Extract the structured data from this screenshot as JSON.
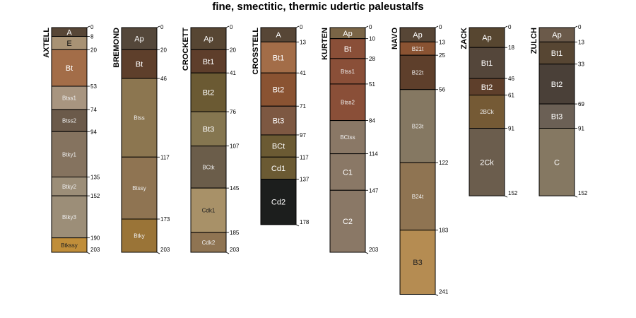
{
  "title": "fine, smectitic, thermic udertic paleustalfs",
  "max_depth": 241,
  "profiles": [
    {
      "name": "AXTELL",
      "horizons": [
        {
          "name": "A",
          "top": 0,
          "bottom": 8,
          "color": "#574636",
          "text": "#ffffff"
        },
        {
          "name": "E",
          "top": 8,
          "bottom": 20,
          "color": "#a89274",
          "text": "#111111"
        },
        {
          "name": "Bt",
          "top": 20,
          "bottom": 53,
          "color": "#a36d48",
          "text": "#ffffff"
        },
        {
          "name": "Btss1",
          "top": 53,
          "bottom": 74,
          "color": "#a89580",
          "text": "#eeeeee"
        },
        {
          "name": "Btss2",
          "top": 74,
          "bottom": 94,
          "color": "#6b5a4a",
          "text": "#eeeeee"
        },
        {
          "name": "Btky1",
          "top": 94,
          "bottom": 135,
          "color": "#85735f",
          "text": "#eeeeee"
        },
        {
          "name": "Btky2",
          "top": 135,
          "bottom": 152,
          "color": "#9c8e78",
          "text": "#eeeeee"
        },
        {
          "name": "Btky3",
          "top": 152,
          "bottom": 190,
          "color": "#9c8e78",
          "text": "#eeeeee"
        },
        {
          "name": "Btkssy",
          "top": 190,
          "bottom": 203,
          "color": "#c08e3a",
          "text": "#222222"
        }
      ]
    },
    {
      "name": "BREMOND",
      "horizons": [
        {
          "name": "Ap",
          "top": 0,
          "bottom": 20,
          "color": "#54473a",
          "text": "#ffffff"
        },
        {
          "name": "Bt",
          "top": 20,
          "bottom": 46,
          "color": "#5e3f2b",
          "text": "#ffffff"
        },
        {
          "name": "Btss",
          "top": 46,
          "bottom": 117,
          "color": "#8c7650",
          "text": "#eeeeee"
        },
        {
          "name": "Btssy",
          "top": 117,
          "bottom": 173,
          "color": "#8f7452",
          "text": "#eeeeee"
        },
        {
          "name": "Btky",
          "top": 173,
          "bottom": 203,
          "color": "#9a7437",
          "text": "#eeeeee"
        }
      ]
    },
    {
      "name": "CROCKETT",
      "horizons": [
        {
          "name": "Ap",
          "top": 0,
          "bottom": 20,
          "color": "#574633",
          "text": "#ffffff"
        },
        {
          "name": "Bt1",
          "top": 20,
          "bottom": 41,
          "color": "#5e3e2b",
          "text": "#ffffff"
        },
        {
          "name": "Bt2",
          "top": 41,
          "bottom": 76,
          "color": "#6b5a33",
          "text": "#ffffff"
        },
        {
          "name": "Bt3",
          "top": 76,
          "bottom": 107,
          "color": "#857650",
          "text": "#ffffff"
        },
        {
          "name": "BCtk",
          "top": 107,
          "bottom": 145,
          "color": "#6b5d4a",
          "text": "#eeeeee"
        },
        {
          "name": "Cdk1",
          "top": 145,
          "bottom": 185,
          "color": "#a89168",
          "text": "#222222"
        },
        {
          "name": "Cdk2",
          "top": 185,
          "bottom": 203,
          "color": "#8f7452",
          "text": "#eeeeee"
        }
      ]
    },
    {
      "name": "CROSSTELL",
      "horizons": [
        {
          "name": "A",
          "top": 0,
          "bottom": 13,
          "color": "#574636",
          "text": "#ffffff"
        },
        {
          "name": "Bt1",
          "top": 13,
          "bottom": 41,
          "color": "#a36d48",
          "text": "#ffffff"
        },
        {
          "name": "Bt2",
          "top": 41,
          "bottom": 71,
          "color": "#8a5332",
          "text": "#ffffff"
        },
        {
          "name": "Bt3",
          "top": 71,
          "bottom": 97,
          "color": "#7d5842",
          "text": "#ffffff"
        },
        {
          "name": "BCt",
          "top": 97,
          "bottom": 117,
          "color": "#6b5a33",
          "text": "#ffffff"
        },
        {
          "name": "Cd1",
          "top": 117,
          "bottom": 137,
          "color": "#6b5a33",
          "text": "#ffffff"
        },
        {
          "name": "Cd2",
          "top": 137,
          "bottom": 178,
          "color": "#1c1e1d",
          "text": "#ffffff"
        }
      ]
    },
    {
      "name": "KURTEN",
      "horizons": [
        {
          "name": "Ap",
          "top": 0,
          "bottom": 10,
          "color": "#7a6546",
          "text": "#ffffff"
        },
        {
          "name": "Bt",
          "top": 10,
          "bottom": 28,
          "color": "#8a4f38",
          "text": "#ffffff"
        },
        {
          "name": "Btss1",
          "top": 28,
          "bottom": 51,
          "color": "#8a4f38",
          "text": "#eeeeee"
        },
        {
          "name": "Btss2",
          "top": 51,
          "bottom": 84,
          "color": "#8a4f38",
          "text": "#eeeeee"
        },
        {
          "name": "BCtss",
          "top": 84,
          "bottom": 114,
          "color": "#8a7866",
          "text": "#eeeeee"
        },
        {
          "name": "C1",
          "top": 114,
          "bottom": 147,
          "color": "#8a7866",
          "text": "#ffffff"
        },
        {
          "name": "C2",
          "top": 147,
          "bottom": 203,
          "color": "#8a7866",
          "text": "#ffffff"
        }
      ]
    },
    {
      "name": "NAVO",
      "horizons": [
        {
          "name": "Ap",
          "top": 0,
          "bottom": 13,
          "color": "#574636",
          "text": "#ffffff"
        },
        {
          "name": "B21t",
          "top": 13,
          "bottom": 25,
          "color": "#8a5332",
          "text": "#eeeeee"
        },
        {
          "name": "B22t",
          "top": 25,
          "bottom": 56,
          "color": "#5e3f2b",
          "text": "#eeeeee"
        },
        {
          "name": "B23t",
          "top": 56,
          "bottom": 122,
          "color": "#857862",
          "text": "#eeeeee"
        },
        {
          "name": "B24t",
          "top": 122,
          "bottom": 183,
          "color": "#8f7452",
          "text": "#eeeeee"
        },
        {
          "name": "B3",
          "top": 183,
          "bottom": 241,
          "color": "#b58c52",
          "text": "#222222"
        }
      ]
    },
    {
      "name": "ZACK",
      "horizons": [
        {
          "name": "Ap",
          "top": 0,
          "bottom": 18,
          "color": "#574630",
          "text": "#ffffff"
        },
        {
          "name": "Bt1",
          "top": 18,
          "bottom": 46,
          "color": "#54463a",
          "text": "#ffffff"
        },
        {
          "name": "Bt2",
          "top": 46,
          "bottom": 61,
          "color": "#5e3f2b",
          "text": "#ffffff"
        },
        {
          "name": "2BCk",
          "top": 61,
          "bottom": 91,
          "color": "#755a35",
          "text": "#eeeeee"
        },
        {
          "name": "2Ck",
          "top": 91,
          "bottom": 152,
          "color": "#6b5d4d",
          "text": "#ffffff"
        }
      ]
    },
    {
      "name": "ZULCH",
      "horizons": [
        {
          "name": "Ap",
          "top": 0,
          "bottom": 13,
          "color": "#6b5a4a",
          "text": "#ffffff"
        },
        {
          "name": "Bt1",
          "top": 13,
          "bottom": 33,
          "color": "#574633",
          "text": "#ffffff"
        },
        {
          "name": "Bt2",
          "top": 33,
          "bottom": 69,
          "color": "#4a4038",
          "text": "#ffffff"
        },
        {
          "name": "Bt3",
          "top": 69,
          "bottom": 91,
          "color": "#6b6055",
          "text": "#ffffff"
        },
        {
          "name": "C",
          "top": 91,
          "bottom": 152,
          "color": "#857862",
          "text": "#ffffff"
        }
      ]
    }
  ]
}
